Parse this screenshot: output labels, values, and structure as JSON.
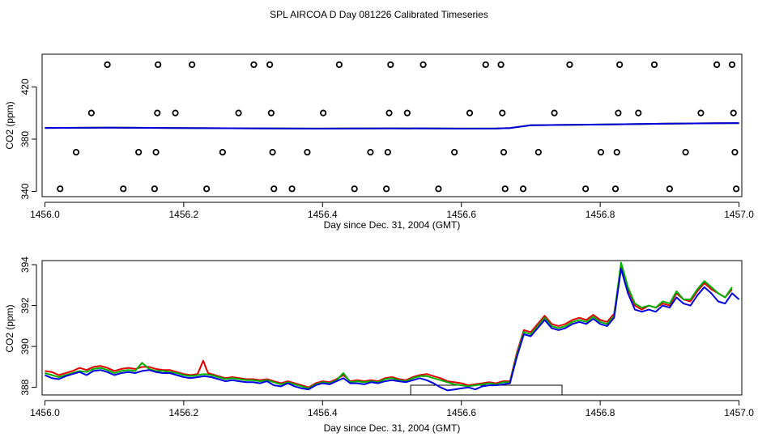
{
  "title": "SPL AIRCOA D  Day 081226  Calibrated Timeseries",
  "colors": {
    "red": "#e00000",
    "green": "#00b000",
    "blue": "#0000e0",
    "marker": "#000000"
  },
  "chart_data": [
    {
      "type": "scatter",
      "xlabel": "Day since Dec. 31, 2004 (GMT)",
      "ylabel": "CO2 (ppm)",
      "xlim": [
        1455.996,
        1457.004
      ],
      "ylim": [
        336,
        445
      ],
      "xticks": [
        1456.0,
        1456.2,
        1456.4,
        1456.6,
        1456.8,
        1457.0
      ],
      "xtick_labels": [
        "1456.0",
        "1456.2",
        "1456.4",
        "1456.6",
        "1456.8",
        "1457.0"
      ],
      "yticks": [
        340,
        380,
        420
      ],
      "ytick_labels": [
        "340",
        "380",
        "420"
      ],
      "markers": [
        {
          "x": 1456.022,
          "y": 342
        },
        {
          "x": 1456.045,
          "y": 370
        },
        {
          "x": 1456.067,
          "y": 400
        },
        {
          "x": 1456.09,
          "y": 437
        },
        {
          "x": 1456.113,
          "y": 342
        },
        {
          "x": 1456.135,
          "y": 370
        },
        {
          "x": 1456.158,
          "y": 342
        },
        {
          "x": 1456.16,
          "y": 370
        },
        {
          "x": 1456.162,
          "y": 400
        },
        {
          "x": 1456.163,
          "y": 437
        },
        {
          "x": 1456.188,
          "y": 400
        },
        {
          "x": 1456.212,
          "y": 437
        },
        {
          "x": 1456.233,
          "y": 342
        },
        {
          "x": 1456.256,
          "y": 370
        },
        {
          "x": 1456.279,
          "y": 400
        },
        {
          "x": 1456.301,
          "y": 437
        },
        {
          "x": 1456.324,
          "y": 437
        },
        {
          "x": 1456.326,
          "y": 400
        },
        {
          "x": 1456.328,
          "y": 370
        },
        {
          "x": 1456.33,
          "y": 342
        },
        {
          "x": 1456.356,
          "y": 342
        },
        {
          "x": 1456.378,
          "y": 370
        },
        {
          "x": 1456.401,
          "y": 400
        },
        {
          "x": 1456.424,
          "y": 437
        },
        {
          "x": 1456.446,
          "y": 342
        },
        {
          "x": 1456.469,
          "y": 370
        },
        {
          "x": 1456.492,
          "y": 342
        },
        {
          "x": 1456.494,
          "y": 370
        },
        {
          "x": 1456.496,
          "y": 400
        },
        {
          "x": 1456.498,
          "y": 437
        },
        {
          "x": 1456.522,
          "y": 400
        },
        {
          "x": 1456.545,
          "y": 437
        },
        {
          "x": 1456.567,
          "y": 342
        },
        {
          "x": 1456.59,
          "y": 370
        },
        {
          "x": 1456.612,
          "y": 400
        },
        {
          "x": 1456.635,
          "y": 437
        },
        {
          "x": 1456.657,
          "y": 437
        },
        {
          "x": 1456.659,
          "y": 400
        },
        {
          "x": 1456.661,
          "y": 370
        },
        {
          "x": 1456.663,
          "y": 342
        },
        {
          "x": 1456.689,
          "y": 342
        },
        {
          "x": 1456.711,
          "y": 370
        },
        {
          "x": 1456.734,
          "y": 400
        },
        {
          "x": 1456.756,
          "y": 437
        },
        {
          "x": 1456.779,
          "y": 342
        },
        {
          "x": 1456.801,
          "y": 370
        },
        {
          "x": 1456.822,
          "y": 342
        },
        {
          "x": 1456.824,
          "y": 370
        },
        {
          "x": 1456.826,
          "y": 400
        },
        {
          "x": 1456.828,
          "y": 437
        },
        {
          "x": 1456.855,
          "y": 400
        },
        {
          "x": 1456.878,
          "y": 437
        },
        {
          "x": 1456.9,
          "y": 342
        },
        {
          "x": 1456.923,
          "y": 370
        },
        {
          "x": 1456.945,
          "y": 400
        },
        {
          "x": 1456.968,
          "y": 437
        },
        {
          "x": 1456.99,
          "y": 437
        },
        {
          "x": 1456.992,
          "y": 400
        },
        {
          "x": 1456.994,
          "y": 370
        },
        {
          "x": 1456.996,
          "y": 342
        }
      ],
      "series": [
        {
          "color": "red",
          "x": [
            1456.0,
            1456.1,
            1456.2,
            1456.3,
            1456.4,
            1456.5,
            1456.6,
            1456.65,
            1456.67,
            1456.7,
            1456.8,
            1456.9,
            1457.0
          ],
          "y": [
            388.6,
            388.8,
            388.5,
            388.3,
            388.1,
            388.3,
            388.1,
            388.2,
            388.5,
            390.6,
            391.2,
            391.9,
            392.3
          ]
        },
        {
          "color": "green",
          "x": [
            1456.0,
            1456.1,
            1456.2,
            1456.3,
            1456.4,
            1456.5,
            1456.6,
            1456.65,
            1456.67,
            1456.7,
            1456.8,
            1456.9,
            1457.0
          ],
          "y": [
            388.6,
            388.8,
            388.5,
            388.3,
            388.1,
            388.3,
            388.1,
            388.2,
            388.5,
            390.6,
            391.2,
            391.9,
            392.3
          ]
        },
        {
          "color": "blue",
          "x": [
            1456.0,
            1456.1,
            1456.2,
            1456.3,
            1456.4,
            1456.5,
            1456.6,
            1456.65,
            1456.67,
            1456.7,
            1456.8,
            1456.9,
            1457.0
          ],
          "y": [
            388.6,
            388.8,
            388.5,
            388.3,
            388.1,
            388.3,
            388.1,
            388.2,
            388.5,
            390.6,
            391.2,
            391.9,
            392.3
          ]
        }
      ]
    },
    {
      "type": "line",
      "xlabel": "Day since Dec. 31, 2004 (GMT)",
      "ylabel": "CO2 (ppm)",
      "xlim": [
        1455.996,
        1457.004
      ],
      "ylim": [
        387.63,
        394.2
      ],
      "xticks": [
        1456.0,
        1456.2,
        1456.4,
        1456.6,
        1456.8,
        1457.0
      ],
      "xtick_labels": [
        "1456.0",
        "1456.2",
        "1456.4",
        "1456.6",
        "1456.8",
        "1457.0"
      ],
      "yticks": [
        388,
        390,
        392,
        394
      ],
      "ytick_labels": [
        "388",
        "390",
        "392",
        "394"
      ],
      "interval_bar": {
        "x_start": 1456.527,
        "x_end": 1456.745
      },
      "series": [
        {
          "color": "red",
          "x": [
            1456.0,
            1456.01,
            1456.02,
            1456.03,
            1456.04,
            1456.05,
            1456.06,
            1456.07,
            1456.08,
            1456.09,
            1456.1,
            1456.11,
            1456.12,
            1456.13,
            1456.14,
            1456.15,
            1456.16,
            1456.17,
            1456.18,
            1456.19,
            1456.2,
            1456.21,
            1456.22,
            1456.228,
            1456.235,
            1456.25,
            1456.26,
            1456.27,
            1456.28,
            1456.29,
            1456.3,
            1456.31,
            1456.32,
            1456.33,
            1456.34,
            1456.35,
            1456.36,
            1456.37,
            1456.38,
            1456.39,
            1456.4,
            1456.41,
            1456.42,
            1456.43,
            1456.44,
            1456.45,
            1456.46,
            1456.47,
            1456.48,
            1456.49,
            1456.5,
            1456.51,
            1456.52,
            1456.53,
            1456.54,
            1456.55,
            1456.56,
            1456.57,
            1456.58,
            1456.59,
            1456.6,
            1456.61,
            1456.62,
            1456.63,
            1456.64,
            1456.65,
            1456.66,
            1456.67,
            1456.68,
            1456.69,
            1456.7,
            1456.71,
            1456.72,
            1456.73,
            1456.74,
            1456.75,
            1456.76,
            1456.77,
            1456.78,
            1456.79,
            1456.8,
            1456.81,
            1456.82,
            1456.83,
            1456.84,
            1456.85,
            1456.86,
            1456.87,
            1456.88,
            1456.89,
            1456.9,
            1456.91,
            1456.92,
            1456.93,
            1456.94,
            1456.95,
            1456.96,
            1456.97,
            1456.98,
            1456.99
          ],
          "y": [
            388.8,
            388.75,
            388.6,
            388.7,
            388.8,
            388.95,
            388.85,
            389.0,
            389.05,
            388.95,
            388.8,
            388.9,
            388.95,
            388.9,
            389.0,
            389.0,
            388.9,
            388.85,
            388.85,
            388.75,
            388.65,
            388.6,
            388.65,
            389.3,
            388.7,
            388.55,
            388.45,
            388.5,
            388.45,
            388.4,
            388.4,
            388.35,
            388.4,
            388.3,
            388.2,
            388.3,
            388.2,
            388.1,
            388.0,
            388.2,
            388.3,
            388.25,
            388.4,
            388.6,
            388.3,
            388.35,
            388.3,
            388.35,
            388.3,
            388.45,
            388.5,
            388.4,
            388.35,
            388.5,
            388.6,
            388.65,
            388.55,
            388.45,
            388.3,
            388.25,
            388.2,
            388.1,
            388.15,
            388.2,
            388.25,
            388.2,
            388.3,
            388.3,
            389.7,
            390.8,
            390.7,
            391.1,
            391.5,
            391.1,
            391.0,
            391.1,
            391.3,
            391.4,
            391.3,
            391.55,
            391.3,
            391.2,
            391.6,
            393.9,
            392.8,
            392.0,
            391.8,
            392.0,
            391.9,
            392.1,
            392.0,
            392.6,
            392.3,
            392.2,
            392.7,
            393.1,
            392.8,
            392.6,
            392.4,
            392.8
          ]
        },
        {
          "color": "green",
          "x": [
            1456.0,
            1456.01,
            1456.02,
            1456.03,
            1456.04,
            1456.05,
            1456.06,
            1456.07,
            1456.08,
            1456.09,
            1456.1,
            1456.11,
            1456.12,
            1456.13,
            1456.14,
            1456.15,
            1456.16,
            1456.17,
            1456.18,
            1456.19,
            1456.2,
            1456.21,
            1456.22,
            1456.23,
            1456.24,
            1456.25,
            1456.26,
            1456.27,
            1456.28,
            1456.29,
            1456.3,
            1456.31,
            1456.32,
            1456.33,
            1456.34,
            1456.35,
            1456.36,
            1456.37,
            1456.38,
            1456.39,
            1456.4,
            1456.41,
            1456.42,
            1456.43,
            1456.44,
            1456.45,
            1456.46,
            1456.47,
            1456.48,
            1456.49,
            1456.5,
            1456.51,
            1456.52,
            1456.53,
            1456.54,
            1456.55,
            1456.56,
            1456.57,
            1456.58,
            1456.59,
            1456.6,
            1456.61,
            1456.62,
            1456.63,
            1456.64,
            1456.65,
            1456.66,
            1456.67,
            1456.68,
            1456.69,
            1456.7,
            1456.71,
            1456.72,
            1456.73,
            1456.74,
            1456.75,
            1456.76,
            1456.77,
            1456.78,
            1456.79,
            1456.8,
            1456.81,
            1456.82,
            1456.83,
            1456.84,
            1456.85,
            1456.86,
            1456.87,
            1456.88,
            1456.89,
            1456.9,
            1456.91,
            1456.92,
            1456.93,
            1456.94,
            1456.95,
            1456.96,
            1456.97,
            1456.98,
            1456.99
          ],
          "y": [
            388.7,
            388.6,
            388.5,
            388.6,
            388.7,
            388.8,
            388.75,
            388.9,
            388.95,
            388.85,
            388.7,
            388.8,
            388.85,
            388.8,
            389.2,
            388.9,
            388.8,
            388.8,
            388.75,
            388.7,
            388.6,
            388.55,
            388.6,
            388.65,
            388.6,
            388.5,
            388.4,
            388.45,
            388.4,
            388.35,
            388.35,
            388.3,
            388.35,
            388.25,
            388.15,
            388.25,
            388.15,
            388.05,
            387.95,
            388.15,
            388.25,
            388.2,
            388.35,
            388.7,
            388.25,
            388.3,
            388.25,
            388.3,
            388.25,
            388.4,
            388.45,
            388.35,
            388.3,
            388.45,
            388.55,
            388.55,
            388.45,
            388.35,
            388.25,
            388.15,
            388.1,
            388.05,
            388.1,
            388.15,
            388.2,
            388.15,
            388.25,
            388.25,
            389.6,
            390.7,
            390.6,
            391.0,
            391.4,
            391.0,
            390.9,
            391.0,
            391.2,
            391.3,
            391.2,
            391.45,
            391.2,
            391.1,
            391.5,
            394.1,
            392.9,
            392.1,
            391.9,
            392.0,
            391.9,
            392.2,
            392.1,
            392.7,
            392.3,
            392.3,
            392.8,
            393.2,
            392.9,
            392.6,
            392.4,
            392.9
          ]
        },
        {
          "color": "blue",
          "x": [
            1456.0,
            1456.01,
            1456.02,
            1456.03,
            1456.04,
            1456.05,
            1456.06,
            1456.07,
            1456.08,
            1456.09,
            1456.1,
            1456.11,
            1456.12,
            1456.13,
            1456.14,
            1456.15,
            1456.16,
            1456.17,
            1456.18,
            1456.19,
            1456.2,
            1456.21,
            1456.22,
            1456.23,
            1456.24,
            1456.25,
            1456.26,
            1456.27,
            1456.28,
            1456.29,
            1456.3,
            1456.31,
            1456.32,
            1456.33,
            1456.34,
            1456.35,
            1456.36,
            1456.37,
            1456.38,
            1456.39,
            1456.4,
            1456.41,
            1456.42,
            1456.43,
            1456.44,
            1456.45,
            1456.46,
            1456.47,
            1456.48,
            1456.49,
            1456.5,
            1456.51,
            1456.52,
            1456.53,
            1456.54,
            1456.55,
            1456.56,
            1456.57,
            1456.58,
            1456.59,
            1456.6,
            1456.61,
            1456.62,
            1456.63,
            1456.64,
            1456.65,
            1456.66,
            1456.67,
            1456.68,
            1456.69,
            1456.7,
            1456.71,
            1456.72,
            1456.73,
            1456.74,
            1456.75,
            1456.76,
            1456.77,
            1456.78,
            1456.79,
            1456.8,
            1456.81,
            1456.82,
            1456.83,
            1456.84,
            1456.85,
            1456.86,
            1456.87,
            1456.88,
            1456.89,
            1456.9,
            1456.91,
            1456.92,
            1456.93,
            1456.94,
            1456.95,
            1456.96,
            1456.97,
            1456.98,
            1456.99,
            1457.0
          ],
          "y": [
            388.6,
            388.45,
            388.4,
            388.55,
            388.65,
            388.75,
            388.6,
            388.8,
            388.85,
            388.75,
            388.6,
            388.7,
            388.75,
            388.7,
            388.8,
            388.85,
            388.75,
            388.7,
            388.7,
            388.6,
            388.5,
            388.45,
            388.5,
            388.55,
            388.5,
            388.4,
            388.3,
            388.35,
            388.3,
            388.25,
            388.25,
            388.2,
            388.3,
            388.1,
            388.05,
            388.2,
            388.05,
            387.95,
            387.9,
            388.1,
            388.2,
            388.15,
            388.3,
            388.45,
            388.2,
            388.2,
            388.15,
            388.25,
            388.2,
            388.3,
            388.35,
            388.3,
            388.25,
            388.35,
            388.45,
            388.35,
            388.2,
            388.0,
            387.85,
            387.9,
            387.95,
            388.0,
            387.9,
            388.05,
            388.1,
            388.1,
            388.15,
            388.2,
            389.5,
            390.6,
            390.5,
            390.9,
            391.3,
            390.9,
            390.8,
            390.9,
            391.1,
            391.2,
            391.1,
            391.35,
            391.1,
            391.0,
            391.4,
            393.8,
            392.6,
            391.8,
            391.7,
            391.8,
            391.7,
            392.0,
            391.9,
            392.4,
            392.1,
            392.0,
            392.5,
            392.9,
            392.6,
            392.2,
            392.1,
            392.6,
            392.3
          ]
        }
      ]
    }
  ]
}
